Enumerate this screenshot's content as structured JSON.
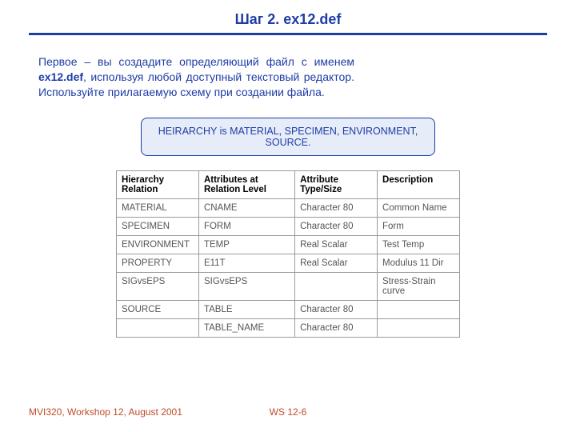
{
  "colors": {
    "title": "#1f3ca6",
    "hr": "#1f3ca6",
    "intro_text": "#1f3ca6",
    "callout_text": "#1f3ca6",
    "callout_border": "#1f3ca6",
    "callout_bg": "#e6ecf8",
    "table_border": "#9a9a9a",
    "footer": "#c04a2a"
  },
  "title_prefix": "Шаг 2.  ",
  "title_file": "ex12.def",
  "intro_part1": "Первое – вы создадите определяющий файл с именем ",
  "intro_bold": "ex12.def",
  "intro_part2": ", используя любой доступный текстовый редактор. Используйте прилагаемую схему при создании файла.",
  "callout": "HEIRARCHY is MATERIAL, SPECIMEN, ENVIRONMENT, SOURCE.",
  "table": {
    "headers": [
      "Hierarchy Relation",
      "Attributes at Relation Level",
      "Attribute Type/Size",
      "Description"
    ],
    "col_widths": [
      "24%",
      "28%",
      "24%",
      "24%"
    ],
    "rows": [
      [
        "MATERIAL",
        "CNAME",
        "Character 80",
        "Common Name"
      ],
      [
        "SPECIMEN",
        "FORM",
        "Character 80",
        "Form"
      ],
      [
        "ENVIRONMENT",
        "TEMP",
        "Real Scalar",
        "Test Temp"
      ],
      [
        "PROPERTY",
        "E11T",
        "Real Scalar",
        "Modulus 11 Dir"
      ],
      [
        "SIGvsEPS",
        "SIGvsEPS",
        "",
        "Stress-Strain curve"
      ],
      [
        "SOURCE",
        "TABLE",
        "Character 80",
        ""
      ],
      [
        "",
        "TABLE_NAME",
        "Character 80",
        ""
      ]
    ],
    "dotted_row_index": 5
  },
  "footer": {
    "left": "MVI320, Workshop 12, August 2001",
    "center": "WS 12-6"
  }
}
